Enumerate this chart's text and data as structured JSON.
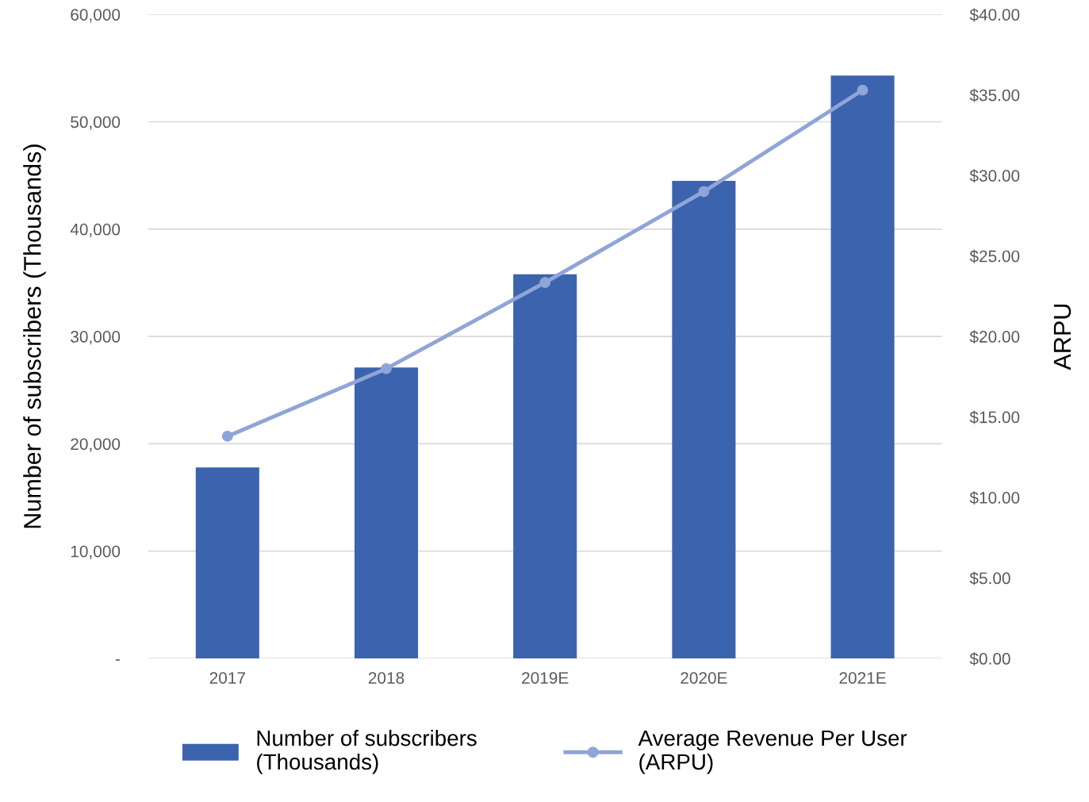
{
  "chart_data": {
    "type": "bar",
    "ylabel": "Number of subscribers (Thousands)",
    "y2label": "ARPU",
    "categories": [
      "2017",
      "2018",
      "2019E",
      "2020E",
      "2021E"
    ],
    "series": [
      {
        "name": "Number of subscribers\n(Thousands)",
        "color": "#3c63ad",
        "values": [
          17800,
          27100,
          35800,
          44500,
          54300
        ]
      },
      {
        "name": "Average Revenue Per User\n(ARPU)",
        "type": "line",
        "axis": "y2",
        "color": "#8fa5d8",
        "marker": "circle",
        "values": [
          13.8,
          18.0,
          23.35,
          29.0,
          35.3
        ]
      }
    ],
    "ylim": [
      0,
      60000
    ],
    "yticks": [
      {
        "value": 0,
        "label": "-"
      },
      {
        "value": 10000,
        "label": "10,000"
      },
      {
        "value": 20000,
        "label": "20,000"
      },
      {
        "value": 30000,
        "label": "30,000"
      },
      {
        "value": 40000,
        "label": "40,000"
      },
      {
        "value": 50000,
        "label": "50,000"
      },
      {
        "value": 60000,
        "label": "60,000"
      }
    ],
    "y2lim": [
      0,
      40
    ],
    "y2ticks": [
      {
        "value": 0,
        "label": "$0.00"
      },
      {
        "value": 5,
        "label": "$5.00"
      },
      {
        "value": 10,
        "label": "$10.00"
      },
      {
        "value": 15,
        "label": "$15.00"
      },
      {
        "value": 20,
        "label": "$20.00"
      },
      {
        "value": 25,
        "label": "$25.00"
      },
      {
        "value": 30,
        "label": "$30.00"
      },
      {
        "value": 35,
        "label": "$35.00"
      },
      {
        "value": 40,
        "label": "$40.00"
      }
    ],
    "grid": "y",
    "legend": "bottom"
  }
}
